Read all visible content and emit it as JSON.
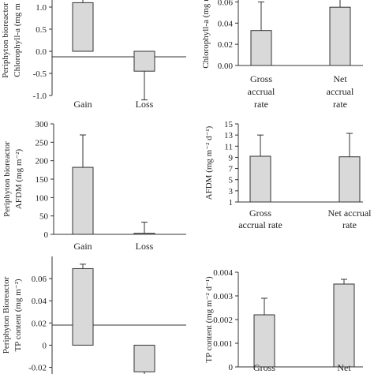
{
  "colors": {
    "bar_fill": "#d9d9d9",
    "bar_stroke": "#333333",
    "axis": "#333333"
  },
  "chart_data": [
    {
      "type": "bar",
      "panel": "top-left",
      "categories": [
        "Gain",
        "Loss"
      ],
      "values": [
        1.1,
        -0.45
      ],
      "error_bars": [
        0.55,
        0.65
      ],
      "ylabel_lines": [
        "Periphyton bioreactor",
        "Chlorophyll-a (mg m"
      ],
      "yticks": [
        "-1.0",
        "-0.5",
        "0.0",
        "0.5",
        "1.0"
      ],
      "ylim": [
        -1.0,
        1.5
      ],
      "grid": false
    },
    {
      "type": "bar",
      "panel": "top-right",
      "categories": [
        "Gross accrual rate",
        "Net accrual rate"
      ],
      "category_lines": [
        [
          "Gross",
          "accrual",
          "rate"
        ],
        [
          "Net",
          "accrual",
          "rate"
        ]
      ],
      "values": [
        0.033,
        0.055
      ],
      "error_bars": [
        0.027,
        0.025
      ],
      "ylabel_lines": [
        "Chlorophyll-a (mg m"
      ],
      "yticks": [
        "0.00",
        "0.02",
        "0.04",
        "0.06"
      ],
      "ylim": [
        0.0,
        0.073
      ],
      "grid": false
    },
    {
      "type": "bar",
      "panel": "middle-left",
      "categories": [
        "Gain",
        "Loss"
      ],
      "values": [
        182,
        3
      ],
      "error_bars": [
        88,
        30
      ],
      "ylabel_lines": [
        "Periphyton bioreactor",
        "AFDM (mg m⁻²)"
      ],
      "yticks": [
        "0",
        "50",
        "100",
        "150",
        "200",
        "250",
        "300"
      ],
      "ylim": [
        0,
        300
      ],
      "grid": false
    },
    {
      "type": "bar",
      "panel": "middle-right",
      "categories": [
        "Gross accrual rate",
        "Net accrual rate"
      ],
      "category_lines": [
        [
          "Gross",
          "accrual rate"
        ],
        [
          "Net accrual",
          "rate"
        ]
      ],
      "values": [
        9.2,
        9.1
      ],
      "error_bars": [
        3.8,
        4.2
      ],
      "ylabel_lines": [
        "AFDM (mg m⁻² d⁻¹)"
      ],
      "yticks": [
        "1",
        "3",
        "5",
        "7",
        "9",
        "11",
        "13",
        "15"
      ],
      "ylim": [
        1,
        15
      ],
      "grid": false
    },
    {
      "type": "bar",
      "panel": "bottom-left",
      "categories": [
        "",
        ""
      ],
      "values": [
        0.069,
        -0.024
      ],
      "error_bars": [
        0.004,
        0.015
      ],
      "ylabel_lines": [
        "Periphyton Bioreactor",
        "TP content (mg m⁻²)"
      ],
      "yticks": [
        "-0.02",
        "0",
        "0.02",
        "0.04",
        "0.06"
      ],
      "ylim": [
        -0.026,
        0.08
      ],
      "grid": false
    },
    {
      "type": "bar",
      "panel": "bottom-right",
      "categories": [
        "Gross",
        "Net"
      ],
      "category_lines": [
        [
          "Gross"
        ],
        [
          "Net"
        ]
      ],
      "values": [
        0.0022,
        0.0035
      ],
      "error_bars": [
        0.0007,
        0.0002
      ],
      "ylabel_lines": [
        "TP content (mg m⁻² d⁻¹)"
      ],
      "yticks": [
        "0",
        "0.001",
        "0.002",
        "0.003",
        "0.004"
      ],
      "ylim": [
        0,
        0.004
      ],
      "grid": false
    }
  ]
}
